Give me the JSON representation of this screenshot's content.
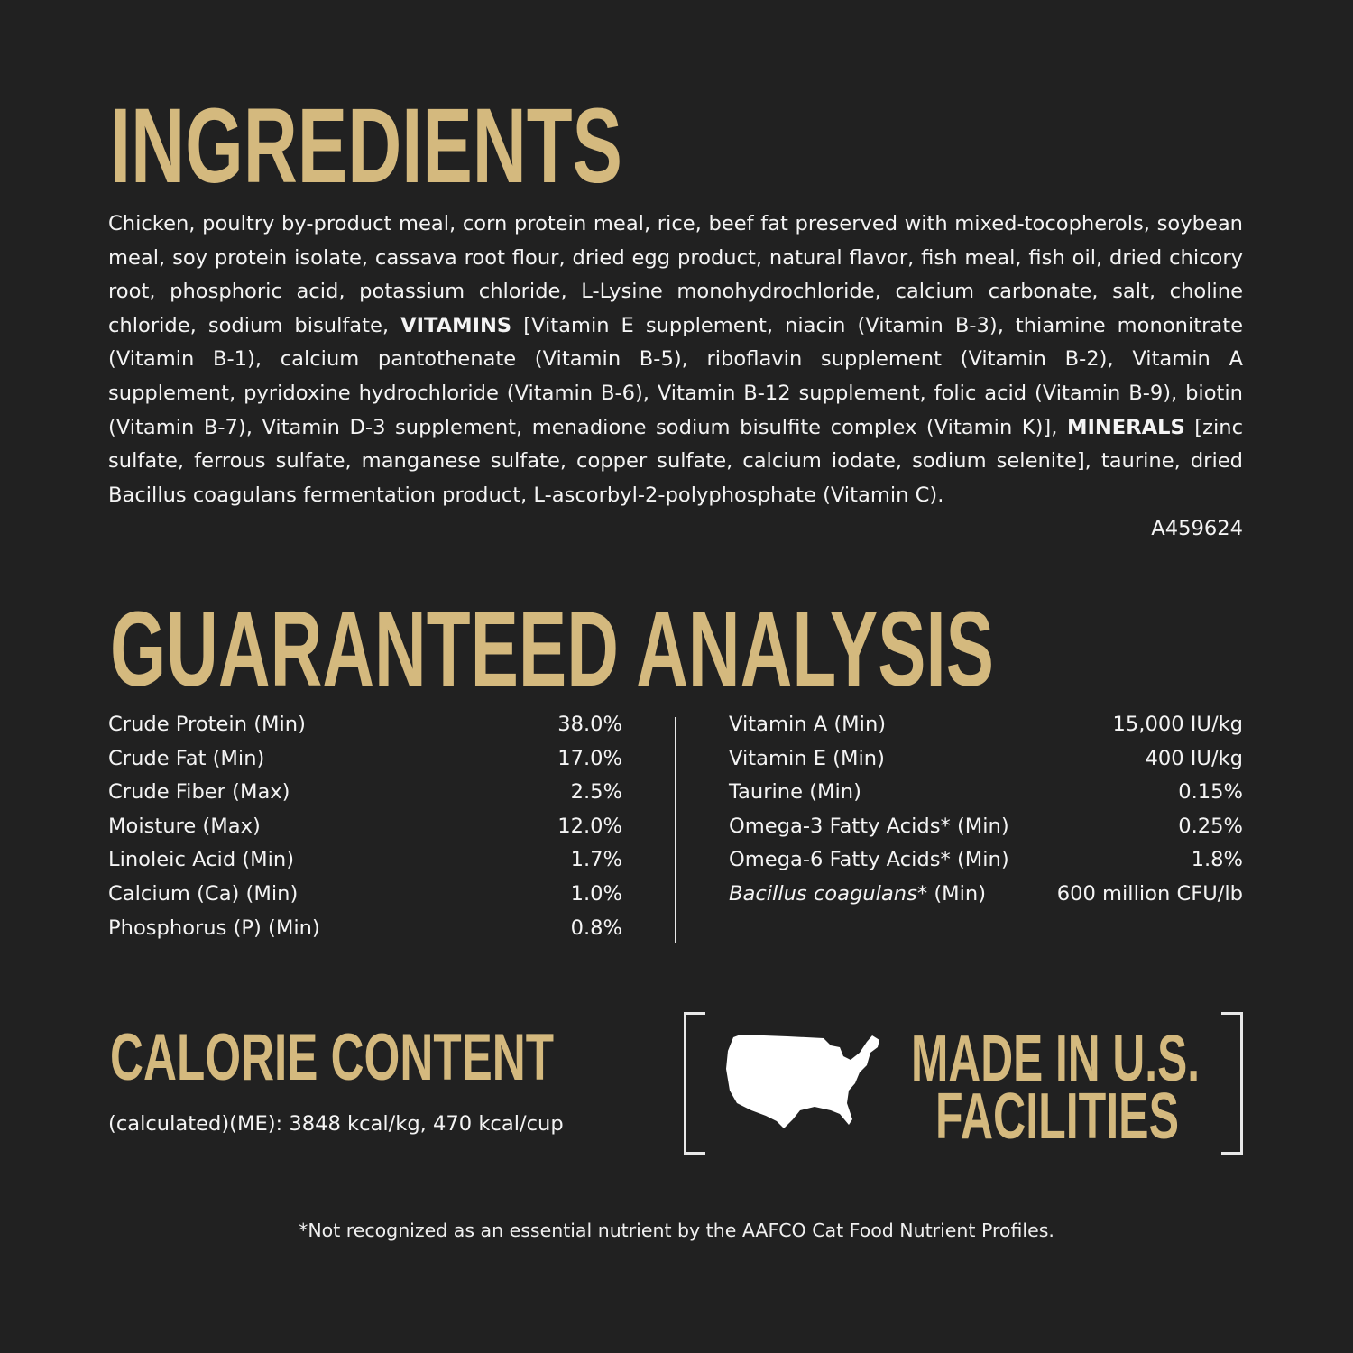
{
  "colors": {
    "background": "#212121",
    "heading": "#d4b97e",
    "text": "#f4f4f4"
  },
  "ingredients": {
    "title": "INGREDIENTS",
    "text_1": "Chicken, poultry by-product meal, corn protein meal, rice, beef fat preserved with mixed-tocopherols, soybean meal, soy protein isolate, cassava root flour, dried egg product, natural flavor, fish meal, fish oil, dried chicory root, phosphoric acid, potassium chloride, L-Lysine monohydrochloride, calcium carbonate, salt, choline chloride, sodium bisulfate, ",
    "vitamins_label": "VITAMINS",
    "text_2": " [Vitamin E supplement, niacin (Vitamin B-3), thiamine mononitrate (Vitamin B-1), calcium pantothenate (Vitamin B-5), riboflavin supplement (Vitamin B-2), Vitamin A supplement, pyridoxine hydrochloride (Vitamin B-6), Vitamin B-12 supplement, folic acid (Vitamin B-9), biotin (Vitamin B-7), Vitamin D-3 supplement, menadione sodium bisulfite complex (Vitamin K)], ",
    "minerals_label": "MINERALS",
    "text_3": " [zinc sulfate, ferrous sulfate, manganese sulfate, copper sulfate, calcium iodate, sodium selenite], taurine, dried Bacillus coagulans fermentation product, L-ascorbyl-2-polyphosphate (Vitamin C).",
    "code": "A459624"
  },
  "analysis": {
    "title": "GUARANTEED ANALYSIS",
    "left": [
      {
        "label": "Crude Protein (Min)",
        "value": "38.0%"
      },
      {
        "label": "Crude Fat (Min)",
        "value": "17.0%"
      },
      {
        "label": "Crude Fiber (Max)",
        "value": "2.5%"
      },
      {
        "label": "Moisture (Max)",
        "value": "12.0%"
      },
      {
        "label": "Linoleic Acid (Min)",
        "value": "1.7%"
      },
      {
        "label": "Calcium (Ca) (Min)",
        "value": "1.0%"
      },
      {
        "label": "Phosphorus (P) (Min)",
        "value": "0.8%"
      }
    ],
    "right": [
      {
        "label": "Vitamin A (Min)",
        "value": "15,000 IU/kg"
      },
      {
        "label": "Vitamin E (Min)",
        "value": "400 IU/kg"
      },
      {
        "label": "Taurine (Min)",
        "value": "0.15%"
      },
      {
        "label": "Omega-3 Fatty Acids* (Min)",
        "value": "0.25%"
      },
      {
        "label": "Omega-6 Fatty Acids* (Min)",
        "value": "1.8%"
      }
    ],
    "bacillus": {
      "label_italic": "Bacillus coagulans",
      "label_rest": "* (Min)",
      "value": "600 million CFU/lb"
    }
  },
  "calorie": {
    "title": "CALORIE CONTENT",
    "text": "(calculated)(ME): 3848 kcal/kg, 470 kcal/cup"
  },
  "made_in": {
    "line1": "MADE IN U.S.",
    "line2": "FACILITIES",
    "icon": "usa-map-icon"
  },
  "footnote": "*Not recognized as an essential nutrient by the AAFCO Cat Food Nutrient Profiles."
}
